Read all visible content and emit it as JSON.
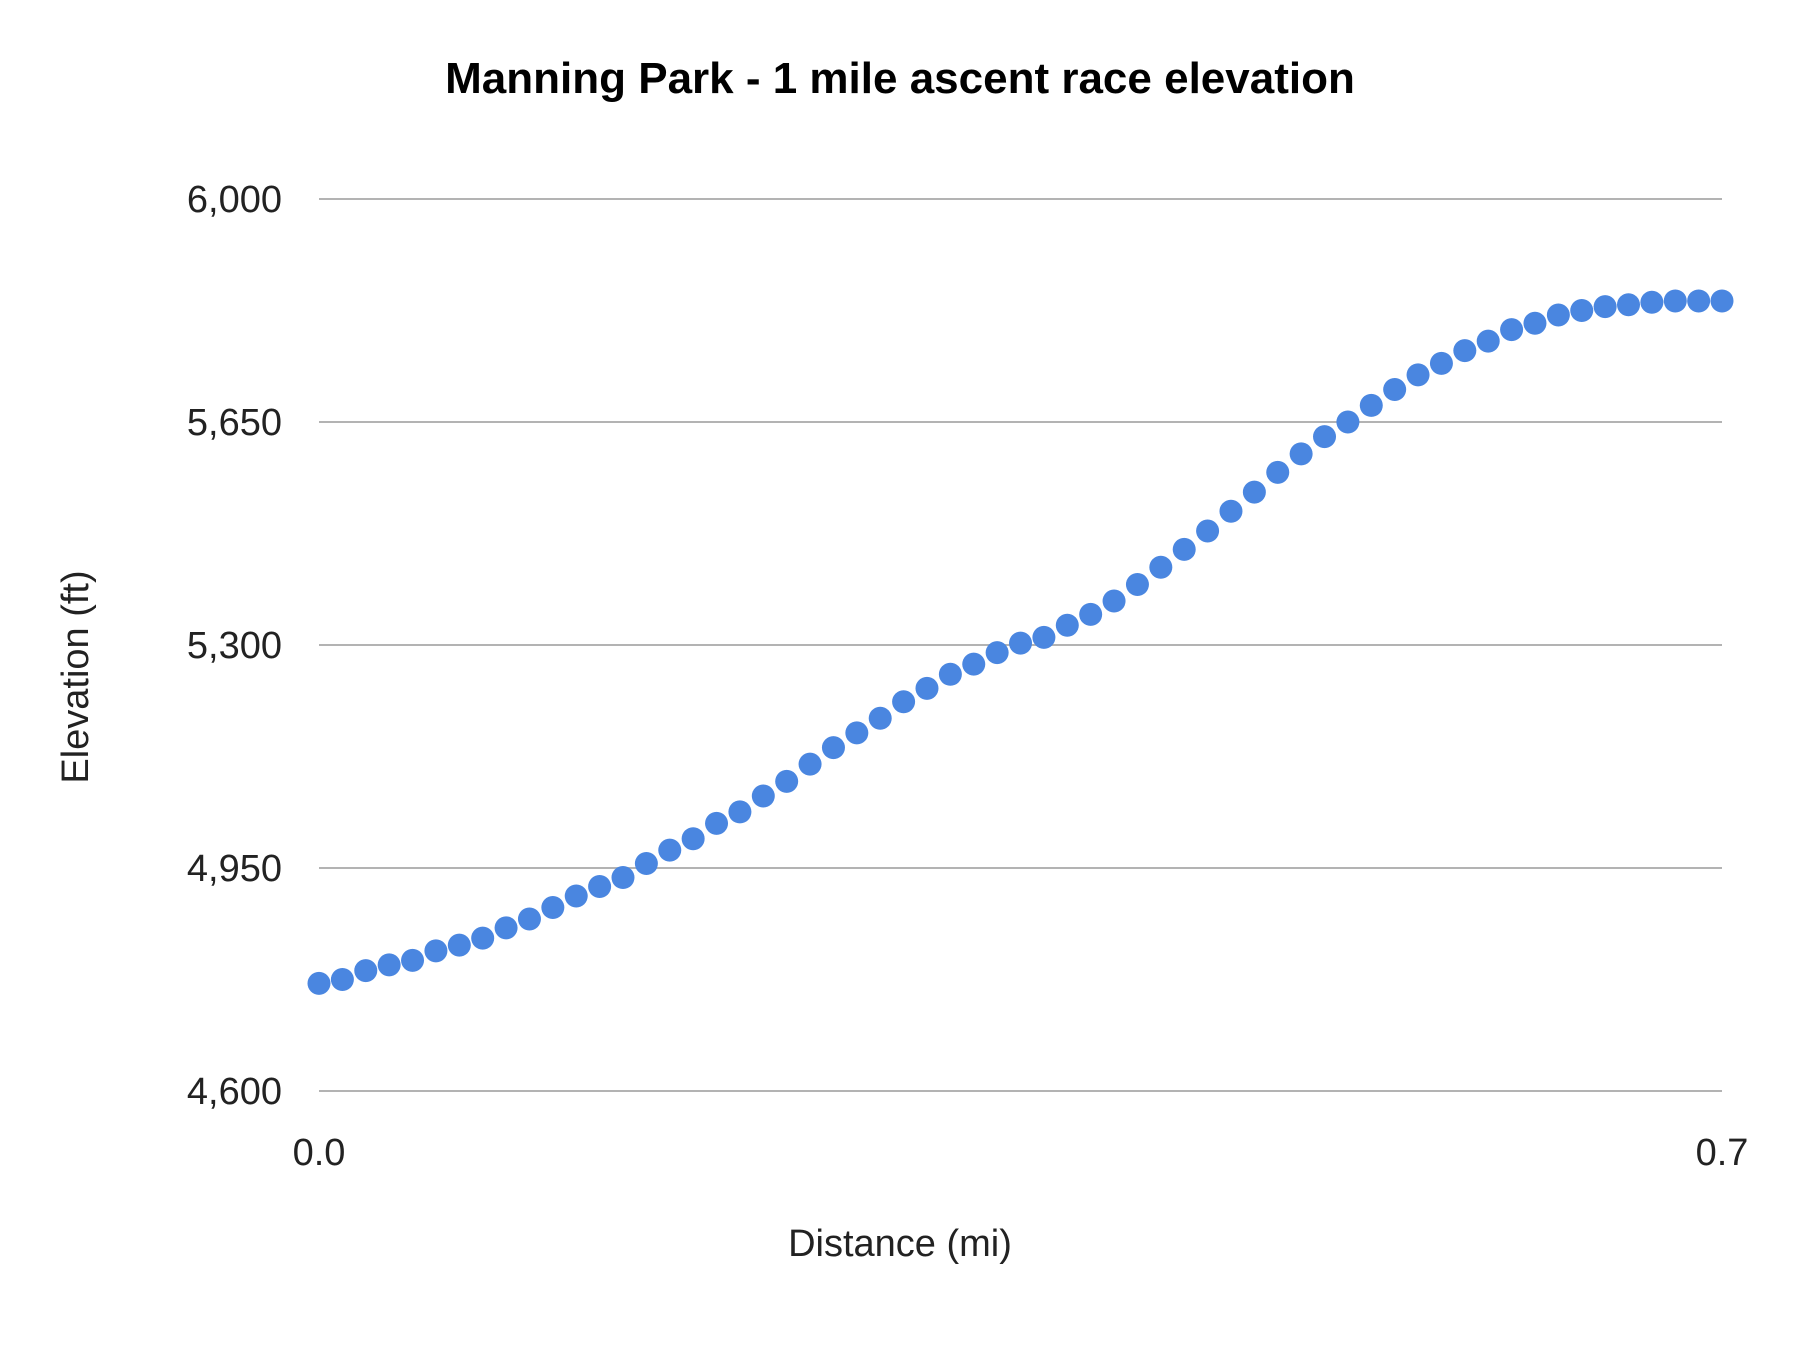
{
  "chart_data": {
    "type": "scatter",
    "title": "Manning Park - 1 mile ascent race elevation",
    "xlabel": "Distance (mi)",
    "ylabel": "Elevation (ft)",
    "xlim": [
      0.0,
      0.7
    ],
    "ylim": [
      4600,
      6000
    ],
    "xticks": [
      "0.0",
      "0.7"
    ],
    "yticks": [
      "4,600",
      "4,950",
      "5,300",
      "5,650",
      "6,000"
    ],
    "ytick_values": [
      4600,
      4950,
      5300,
      5650,
      6000
    ],
    "grid": true,
    "legend": "none",
    "color": "#4a86e0",
    "x_start": 0.0,
    "x_step": 0.011667,
    "values": [
      4769,
      4775,
      4789,
      4798,
      4805,
      4820,
      4829,
      4840,
      4856,
      4870,
      4888,
      4906,
      4921,
      4935,
      4957,
      4978,
      4996,
      5020,
      5038,
      5063,
      5086,
      5113,
      5139,
      5162,
      5185,
      5211,
      5232,
      5254,
      5270,
      5288,
      5303,
      5312,
      5331,
      5348,
      5369,
      5395,
      5422,
      5450,
      5479,
      5510,
      5540,
      5571,
      5600,
      5627,
      5650,
      5676,
      5701,
      5724,
      5742,
      5762,
      5777,
      5795,
      5805,
      5818,
      5825,
      5831,
      5834,
      5838,
      5840,
      5840,
      5840
    ]
  }
}
